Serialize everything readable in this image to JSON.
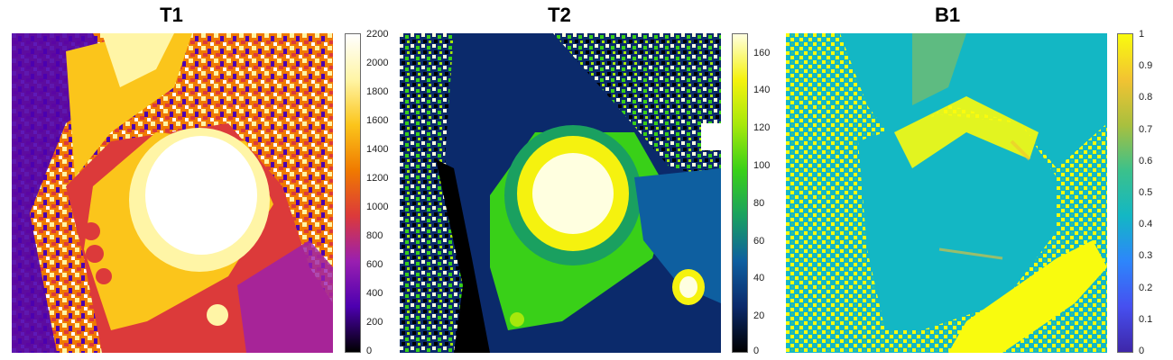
{
  "panels": [
    {
      "title": "T1",
      "colormap": [
        "#000000",
        "#4d00b0",
        "#9a1fb0",
        "#dc3a3a",
        "#f07a00",
        "#fbc51b",
        "#fff5a6",
        "#ffffff"
      ],
      "colorbar_ticks": [
        "2200",
        "2000",
        "1800",
        "1600",
        "1400",
        "1200",
        "1000",
        "800",
        "600",
        "400",
        "200",
        "0"
      ]
    },
    {
      "title": "T2",
      "colormap": [
        "#000000",
        "#0b2a6b",
        "#0e5fa0",
        "#1aa060",
        "#39d018",
        "#a6e80c",
        "#f5f20f",
        "#ffffe0"
      ],
      "colorbar_ticks": [
        "160",
        "140",
        "120",
        "100",
        "80",
        "60",
        "40",
        "20",
        "0"
      ]
    },
    {
      "title": "B1",
      "colormap": [
        "#3e26a8",
        "#4650f0",
        "#2d86fb",
        "#13b7c4",
        "#3bc18b",
        "#a9c03e",
        "#f2c332",
        "#f9fb0e"
      ],
      "colorbar_ticks": [
        "1",
        "0.9",
        "0.8",
        "0.7",
        "0.6",
        "0.5",
        "0.4",
        "0.3",
        "0.2",
        "0.1",
        "0"
      ]
    }
  ]
}
